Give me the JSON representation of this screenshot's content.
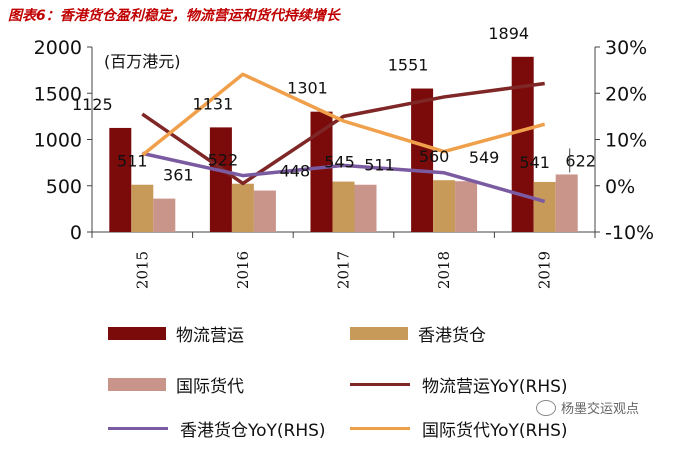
{
  "title": "图表6：香港货仓盈利稳定，物流营运和货代持续增长",
  "watermark": "杨墨交运观点",
  "chart_data": {
    "type": "bar",
    "categories": [
      "2015",
      "2016",
      "2017",
      "2018",
      "2019"
    ],
    "unit_label": "(百万港元)",
    "ylim_left": [
      0,
      2000
    ],
    "yticks_left": [
      "0",
      "500",
      "1000",
      "1500",
      "2000"
    ],
    "ylim_right": [
      -10,
      30
    ],
    "yticks_right": [
      "-10%",
      "0%",
      "10%",
      "20%",
      "30%"
    ],
    "series": [
      {
        "name": "物流营运",
        "type": "bar",
        "axis": "left",
        "color": "#7b0a0a",
        "values": [
          1125,
          1131,
          1301,
          1551,
          1894
        ]
      },
      {
        "name": "香港货仓",
        "type": "bar",
        "axis": "left",
        "color": "#c89a5a",
        "values": [
          511,
          522,
          545,
          560,
          541
        ]
      },
      {
        "name": "国际货代",
        "type": "bar",
        "axis": "left",
        "color": "#c9958a",
        "values": [
          361,
          448,
          511,
          549,
          622
        ]
      },
      {
        "name": "物流营运YoY(RHS)",
        "type": "line",
        "axis": "right",
        "color": "#7f2626",
        "values": [
          15.5,
          0.5,
          15,
          19.2,
          22.1
        ]
      },
      {
        "name": "香港货仓YoY(RHS)",
        "type": "line",
        "axis": "right",
        "color": "#7a5aa0",
        "values": [
          7,
          2.2,
          4.4,
          2.8,
          -3.4
        ]
      },
      {
        "name": "国际货代YoY(RHS)",
        "type": "line",
        "axis": "right",
        "color": "#f0a04b",
        "values": [
          6.6,
          24.1,
          14,
          7.4,
          13.3
        ]
      }
    ],
    "bar_labels": [
      [
        "1125",
        "511",
        "361"
      ],
      [
        "1131",
        "522",
        "448"
      ],
      [
        "1301",
        "545",
        "511"
      ],
      [
        "1551",
        "560",
        "549"
      ],
      [
        "1894",
        "541",
        "622"
      ]
    ]
  },
  "legend": [
    {
      "label": "物流营运",
      "kind": "box",
      "color": "#7b0a0a"
    },
    {
      "label": "香港货仓",
      "kind": "box",
      "color": "#c89a5a"
    },
    {
      "label": "国际货代",
      "kind": "box",
      "color": "#c9958a"
    },
    {
      "label": "物流营运YoY(RHS)",
      "kind": "line",
      "color": "#7f2626"
    },
    {
      "label": "香港货仓YoY(RHS)",
      "kind": "line",
      "color": "#7a5aa0"
    },
    {
      "label": "国际货代YoY(RHS)",
      "kind": "line",
      "color": "#f0a04b"
    }
  ]
}
